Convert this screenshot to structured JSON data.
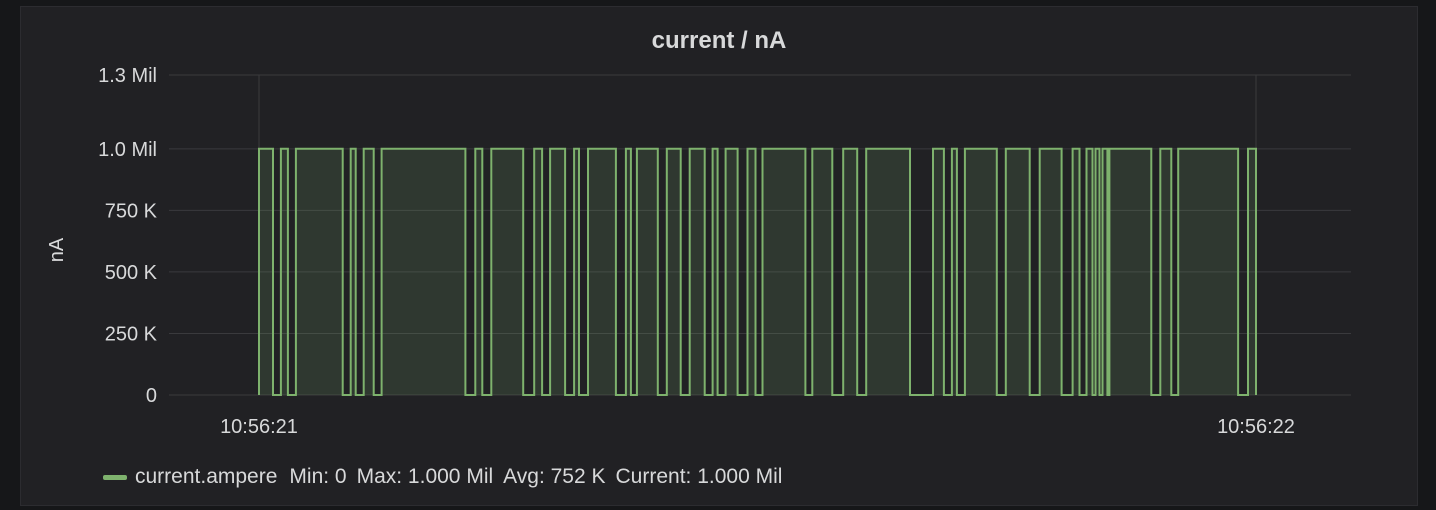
{
  "panel": {
    "title": "current / nA"
  },
  "legend": {
    "series_name": "current.ampere",
    "min": "Min: 0",
    "max": "Max: 1.000 Mil",
    "avg": "Avg: 752 K",
    "current": "Current: 1.000 Mil"
  },
  "colors": {
    "series": "#7eb26d",
    "background": "#212124",
    "grid": "#3a3a3d",
    "text": "#d8d9da"
  },
  "chart_data": {
    "type": "area",
    "title": "current / nA",
    "ylabel": "nA",
    "xlabel": "",
    "ylim": [
      0,
      1300000
    ],
    "yticks": [
      0,
      250000,
      500000,
      750000,
      1000000,
      1300000
    ],
    "ytick_labels": [
      "0",
      "250 K",
      "500 K",
      "750 K",
      "1.0 Mil",
      "1.3 Mil"
    ],
    "xtick_labels": [
      "10:56:21",
      "10:56:22"
    ],
    "grid": true,
    "legend_position": "bottom-left",
    "series": [
      {
        "name": "current.ampere",
        "high_segments": [
          [
            0.0,
            0.014
          ],
          [
            0.022,
            0.029
          ],
          [
            0.037,
            0.084
          ],
          [
            0.092,
            0.097
          ],
          [
            0.105,
            0.115
          ],
          [
            0.123,
            0.207
          ],
          [
            0.217,
            0.224
          ],
          [
            0.233,
            0.265
          ],
          [
            0.276,
            0.284
          ],
          [
            0.292,
            0.307
          ],
          [
            0.316,
            0.321
          ],
          [
            0.33,
            0.358
          ],
          [
            0.368,
            0.373
          ],
          [
            0.379,
            0.4
          ],
          [
            0.409,
            0.423
          ],
          [
            0.432,
            0.447
          ],
          [
            0.455,
            0.46
          ],
          [
            0.468,
            0.48
          ],
          [
            0.49,
            0.498
          ],
          [
            0.505,
            0.548
          ],
          [
            0.555,
            0.575
          ],
          [
            0.586,
            0.6
          ],
          [
            0.609,
            0.653
          ],
          [
            0.676,
            0.687
          ],
          [
            0.695,
            0.7
          ],
          [
            0.708,
            0.74
          ],
          [
            0.749,
            0.773
          ],
          [
            0.783,
            0.805
          ],
          [
            0.816,
            0.823
          ],
          [
            0.83,
            0.836
          ],
          [
            0.839,
            0.843
          ],
          [
            0.846,
            0.851
          ],
          [
            0.853,
            0.895
          ],
          [
            0.904,
            0.915
          ],
          [
            0.922,
            0.982
          ],
          [
            0.992,
            1.0
          ]
        ],
        "high_value": 1000000,
        "low_value": 0
      }
    ]
  }
}
